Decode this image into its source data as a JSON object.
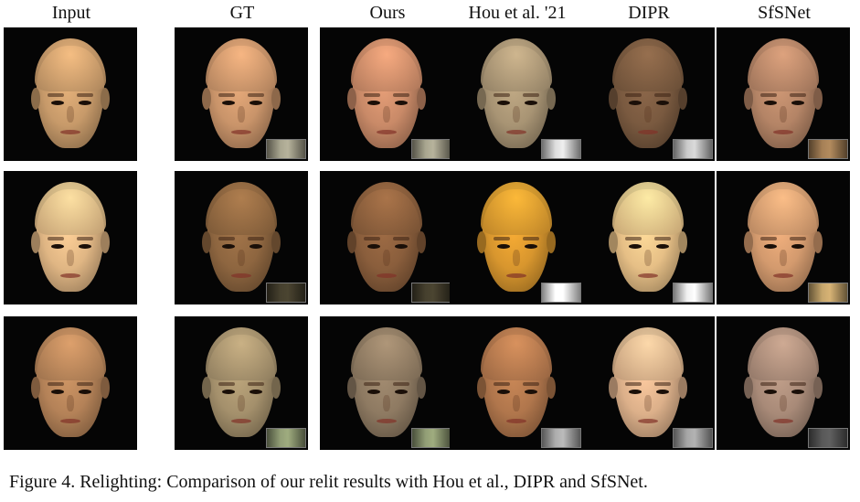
{
  "figure": {
    "columns": [
      "Input",
      "GT",
      "Ours",
      "Hou et al. '21",
      "DIPR",
      "SfSNet"
    ],
    "caption": "Figure 4. Relighting: Comparison of our relit results with Hou et al., DIPR and SfSNet.",
    "colors": {
      "background": "#ffffff",
      "tile_background": "#050505"
    },
    "rows": [
      {
        "skin": [
          "#c79a6a",
          "#c9946a",
          "#c98a68",
          "#a89474",
          "#7a5a40",
          "#b48466"
        ],
        "probe": [
          "",
          "#8d8a78",
          "#8d8a78",
          "#b8b8b8",
          "#a8a8a8",
          "#8a6b48"
        ]
      },
      {
        "skin": [
          "#e0b684",
          "#8e6640",
          "#8a5e3c",
          "#d8962e",
          "#e6bf86",
          "#d39a6e"
        ],
        "probe": [
          "",
          "#3a3526",
          "#3a3526",
          "#d8d8d8",
          "#c8c8c8",
          "#a58a5a"
        ]
      },
      {
        "skin": [
          "#b48258",
          "#a4906c",
          "#8e7a62",
          "#b0764c",
          "#dcb08a",
          "#a88a78"
        ],
        "probe": [
          "",
          "#7a8462",
          "#7a8462",
          "#909090",
          "#8a8a8a",
          "#4a4a4a"
        ]
      }
    ]
  }
}
